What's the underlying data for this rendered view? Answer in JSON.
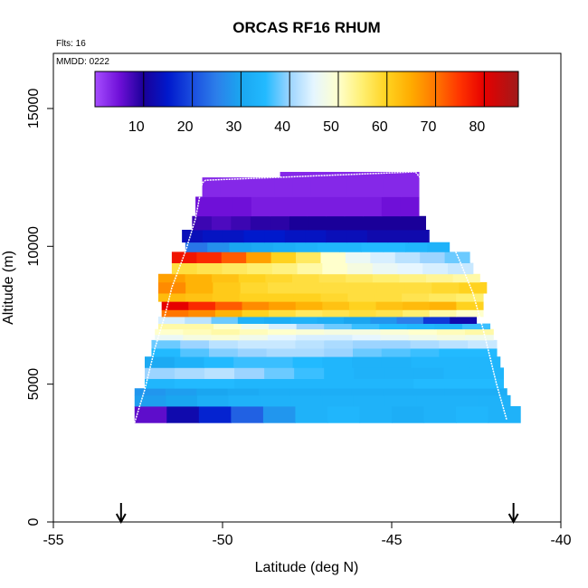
{
  "chart_data": {
    "type": "heatmap",
    "title": "ORCAS RF16 RHUM",
    "xlabel": "Latitude (deg N)",
    "ylabel": "Altitude (m)",
    "xlim": [
      -55,
      -40
    ],
    "ylim": [
      0,
      17000
    ],
    "x_ticks": [
      -55,
      -50,
      -45,
      -40
    ],
    "y_ticks": [
      0,
      5000,
      10000,
      15000
    ],
    "x_tick_labels": [
      "-55",
      "-50",
      "-45",
      "-40"
    ],
    "y_tick_labels": [
      "0",
      "5000",
      "10000",
      "15000"
    ],
    "annotations": {
      "flights": "Flts: 16",
      "date": "MMDD: 0222"
    },
    "colorbar": {
      "range": [
        0,
        87
      ],
      "ticks": [
        10,
        20,
        30,
        40,
        50,
        60,
        70,
        80
      ],
      "tick_labels": [
        "10",
        "20",
        "30",
        "40",
        "50",
        "60",
        "70",
        "80"
      ],
      "stops": [
        {
          "v": 0,
          "c": "#a64dff"
        },
        {
          "v": 5,
          "c": "#6f10d8"
        },
        {
          "v": 10,
          "c": "#1a0099"
        },
        {
          "v": 15,
          "c": "#0019cc"
        },
        {
          "v": 20,
          "c": "#1a4ddf"
        },
        {
          "v": 25,
          "c": "#2c7fea"
        },
        {
          "v": 30,
          "c": "#1aa6f0"
        },
        {
          "v": 35,
          "c": "#22baff"
        },
        {
          "v": 40,
          "c": "#9cd4ff"
        },
        {
          "v": 45,
          "c": "#e6f6ff"
        },
        {
          "v": 50,
          "c": "#ffffcc"
        },
        {
          "v": 55,
          "c": "#ffef70"
        },
        {
          "v": 60,
          "c": "#ffd21f"
        },
        {
          "v": 65,
          "c": "#ffab00"
        },
        {
          "v": 70,
          "c": "#ff7600"
        },
        {
          "v": 75,
          "c": "#ff3300"
        },
        {
          "v": 80,
          "c": "#e60000"
        },
        {
          "v": 87,
          "c": "#a01a1a"
        }
      ]
    },
    "bands": [
      {
        "alt": [
          3600,
          4200
        ],
        "lat": [
          -52.6,
          -41.2
        ],
        "rh": [
          6,
          12,
          16,
          22,
          28,
          33,
          34,
          33,
          32,
          33,
          34,
          33
        ]
      },
      {
        "alt": [
          4200,
          4600
        ],
        "lat": [
          -52.6,
          -41.5
        ],
        "rh": [
          29,
          30,
          32,
          33,
          33,
          33,
          33,
          33,
          33,
          33,
          33,
          33
        ]
      },
      {
        "alt": [
          4600,
          4850
        ],
        "lat": [
          -52.6,
          -41.6
        ],
        "rh": [
          28,
          29,
          30,
          31,
          32,
          32,
          32,
          32,
          32,
          32,
          32,
          32
        ]
      },
      {
        "alt": [
          4850,
          5200
        ],
        "lat": [
          -52.3,
          -41.7
        ],
        "rh": [
          34,
          35,
          35,
          34,
          34,
          34,
          34,
          34,
          34,
          35,
          35,
          35
        ]
      },
      {
        "alt": [
          5200,
          5600
        ],
        "lat": [
          -52.3,
          -41.7
        ],
        "rh": [
          40,
          41,
          42,
          40,
          38,
          36,
          34,
          33,
          33,
          33,
          34,
          34
        ]
      },
      {
        "alt": [
          5600,
          6000
        ],
        "lat": [
          -52.3,
          -41.8
        ],
        "rh": [
          31,
          33,
          35,
          36,
          36,
          35,
          34,
          33,
          33,
          34,
          34,
          34
        ]
      },
      {
        "alt": [
          6000,
          6300
        ],
        "lat": [
          -52.1,
          -41.9
        ],
        "rh": [
          35,
          37,
          39,
          40,
          41,
          41,
          40,
          38,
          37,
          36,
          35,
          35
        ]
      },
      {
        "alt": [
          6300,
          6600
        ],
        "lat": [
          -52.1,
          -41.9
        ],
        "rh": [
          38,
          40,
          42,
          43,
          43,
          42,
          41,
          40,
          40,
          41,
          42,
          43
        ]
      },
      {
        "alt": [
          6600,
          6800
        ],
        "lat": [
          -52.0,
          -42.0
        ],
        "rh": [
          46,
          48,
          49,
          47,
          45,
          44,
          44,
          45,
          46,
          47,
          48,
          47
        ]
      },
      {
        "alt": [
          6800,
          7000
        ],
        "lat": [
          -52.0,
          -42.0
        ],
        "rh": [
          50,
          51,
          52,
          51,
          50,
          49,
          48,
          48,
          49,
          50,
          51,
          52
        ]
      },
      {
        "alt": [
          7000,
          7200
        ],
        "lat": [
          -51.9,
          -42.1
        ],
        "rh": [
          52,
          52,
          50,
          47,
          44,
          40,
          38,
          36,
          35,
          34,
          33,
          36
        ]
      },
      {
        "alt": [
          7200,
          7450
        ],
        "lat": [
          -51.9,
          -42.5
        ],
        "rh": [
          44,
          42,
          38,
          33,
          32,
          33,
          32,
          30,
          28,
          25,
          18,
          12
        ]
      },
      {
        "alt": [
          7450,
          7700
        ],
        "lat": [
          -51.8,
          -42.3
        ],
        "rh": [
          70,
          68,
          64,
          60,
          58,
          56,
          57,
          58,
          57,
          55,
          52,
          50
        ]
      },
      {
        "alt": [
          7700,
          8000
        ],
        "lat": [
          -51.8,
          -42.3
        ],
        "rh": [
          80,
          76,
          72,
          68,
          66,
          64,
          62,
          60,
          62,
          63,
          64,
          60
        ]
      },
      {
        "alt": [
          8000,
          8300
        ],
        "lat": [
          -51.9,
          -42.3
        ],
        "rh": [
          63,
          62,
          61,
          60,
          60,
          60,
          59,
          58,
          58,
          57,
          56,
          55
        ]
      },
      {
        "alt": [
          8300,
          8700
        ],
        "lat": [
          -51.9,
          -42.2
        ],
        "rh": [
          68,
          64,
          61,
          59,
          58,
          58,
          58,
          58,
          58,
          58,
          59,
          60
        ]
      },
      {
        "alt": [
          8700,
          9000
        ],
        "lat": [
          -51.9,
          -42.4
        ],
        "rh": [
          66,
          64,
          62,
          60,
          59,
          58,
          57,
          56,
          55,
          54,
          53,
          52
        ]
      },
      {
        "alt": [
          9000,
          9400
        ],
        "lat": [
          -51.5,
          -42.6
        ],
        "rh": [
          58,
          57,
          56,
          55,
          54,
          52,
          50,
          48,
          46,
          45,
          44,
          43
        ]
      },
      {
        "alt": [
          9400,
          9800
        ],
        "lat": [
          -51.5,
          -42.7
        ],
        "rh": [
          78,
          76,
          72,
          66,
          60,
          56,
          50,
          46,
          44,
          42,
          40,
          38
        ]
      },
      {
        "alt": [
          9800,
          10150
        ],
        "lat": [
          -51.1,
          -43.3
        ],
        "rh": [
          24,
          27,
          30,
          31,
          32,
          33,
          34,
          34,
          35,
          35,
          34,
          33
        ]
      },
      {
        "alt": [
          10150,
          10600
        ],
        "lat": [
          -51.2,
          -43.9
        ],
        "rh": [
          13,
          14,
          14,
          15,
          15,
          14,
          14,
          13,
          13,
          12,
          12,
          12
        ]
      },
      {
        "alt": [
          10600,
          11100
        ],
        "lat": [
          -50.9,
          -44.0
        ],
        "rh": [
          8,
          7,
          8,
          9,
          9,
          10,
          10,
          10,
          10,
          10,
          10,
          10
        ]
      },
      {
        "alt": [
          11100,
          11800
        ],
        "lat": [
          -50.8,
          -44.2
        ],
        "rh": [
          5,
          5,
          5,
          4,
          4,
          4,
          4,
          4,
          4,
          4,
          5,
          5
        ]
      },
      {
        "alt": [
          11800,
          12500
        ],
        "lat": [
          -50.6,
          -44.2
        ],
        "rh": [
          3,
          3,
          3,
          3,
          3,
          3,
          3,
          3,
          3,
          3,
          3,
          3
        ]
      },
      {
        "alt": [
          12500,
          12700
        ],
        "lat": [
          -48.3,
          -44.2
        ],
        "rh": [
          3,
          3,
          3,
          3,
          3,
          3,
          3,
          3,
          3,
          3,
          3,
          3
        ]
      }
    ],
    "flight_track": [
      {
        "lat": -52.6,
        "alt": 3600
      },
      {
        "lat": -52.3,
        "alt": 4800
      },
      {
        "lat": -52.0,
        "alt": 6300
      },
      {
        "lat": -51.7,
        "alt": 7500
      },
      {
        "lat": -51.5,
        "alt": 8500
      },
      {
        "lat": -51.1,
        "alt": 9800
      },
      {
        "lat": -50.8,
        "alt": 11000
      },
      {
        "lat": -50.6,
        "alt": 12300
      },
      {
        "lat": -50.5,
        "alt": 12400
      },
      {
        "lat": -44.3,
        "alt": 12700
      },
      {
        "lat": -44.1,
        "alt": 12400
      },
      {
        "lat": -43.5,
        "alt": 10900
      },
      {
        "lat": -43.0,
        "alt": 9500
      },
      {
        "lat": -42.6,
        "alt": 8300
      },
      {
        "lat": -42.3,
        "alt": 7000
      },
      {
        "lat": -42.1,
        "alt": 6000
      },
      {
        "lat": -41.9,
        "alt": 5000
      },
      {
        "lat": -41.6,
        "alt": 3700
      }
    ],
    "arrows": [
      {
        "lat": -53.0,
        "direction": "down"
      },
      {
        "lat": -41.4,
        "direction": "down"
      }
    ]
  }
}
